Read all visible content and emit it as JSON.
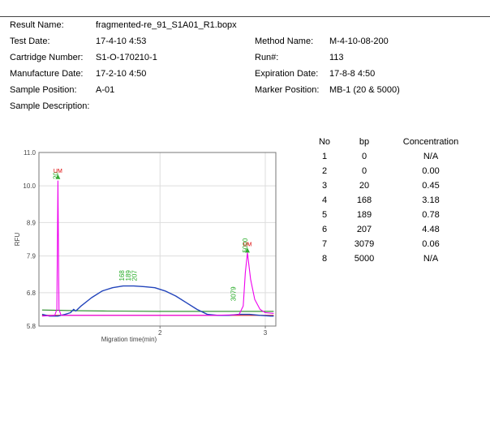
{
  "header": {
    "result_name_label": "Result Name:",
    "result_name": "fragmented-re_91_S1A01_R1.bopx",
    "test_date_label": "Test Date:",
    "test_date": "17-4-10 4:53",
    "method_name_label": "Method Name:",
    "method_name": "M-4-10-08-200",
    "cartridge_label": "Cartridge Number:",
    "cartridge": "S1-O-170210-1",
    "run_label": "Run#:",
    "run": "113",
    "manufacture_label": "Manufacture Date:",
    "manufacture": "17-2-10 4:50",
    "expiration_label": "Expiration Date:",
    "expiration": "17-8-8 4:50",
    "sample_position_label": "Sample Position:",
    "sample_position": "A-01",
    "marker_position_label": "Marker Position:",
    "marker_position": "MB-1 (20 & 5000)",
    "sample_description_label": "Sample Description:"
  },
  "table": {
    "headers": [
      "No",
      "bp",
      "Concentration"
    ],
    "rows": [
      [
        "1",
        "0",
        "N/A"
      ],
      [
        "2",
        "0",
        "0.00"
      ],
      [
        "3",
        "20",
        "0.45"
      ],
      [
        "4",
        "168",
        "3.18"
      ],
      [
        "5",
        "189",
        "0.78"
      ],
      [
        "6",
        "207",
        "4.48"
      ],
      [
        "7",
        "3079",
        "0.06"
      ],
      [
        "8",
        "5000",
        "N/A"
      ]
    ]
  },
  "chart_data": {
    "type": "line",
    "ylabel": "RFU",
    "xlabel": "Migration time(min)",
    "yticks": [
      "11.0",
      "10.0",
      "8.9",
      "7.9",
      "6.8",
      "5.8"
    ],
    "ytick_values": [
      11.0,
      10.0,
      8.9,
      7.9,
      6.8,
      5.8
    ],
    "xticks": [
      "2",
      "3"
    ],
    "xtick_values": [
      2,
      3
    ],
    "xlim": [
      0.85,
      3.1
    ],
    "ylim": [
      5.8,
      11.0
    ],
    "grid": true,
    "colors": {
      "sample": "#2244bb",
      "marker": "#ee00ee",
      "baseline_green": "#228822",
      "baseline_red": "#dd2222",
      "peak_label": "#22aa22",
      "um_label": "#dd0000"
    },
    "peak_labels": [
      {
        "text": "20",
        "x": 1.03,
        "y": 10.15
      },
      {
        "text": "168",
        "x": 1.66,
        "y": 7.1
      },
      {
        "text": "189",
        "x": 1.72,
        "y": 7.1
      },
      {
        "text": "207",
        "x": 1.78,
        "y": 7.1
      },
      {
        "text": "3079",
        "x": 2.72,
        "y": 6.5
      },
      {
        "text": "5000",
        "x": 2.83,
        "y": 7.95
      }
    ],
    "um_markers": [
      {
        "text": "UM",
        "x": 1.03,
        "y": 10.3
      },
      {
        "text": "UM",
        "x": 2.83,
        "y": 8.1
      }
    ],
    "series": [
      {
        "color_key": "marker",
        "x": [
          0.88,
          1.0,
          1.02,
          1.03,
          1.04,
          1.06,
          1.2,
          1.5,
          2.0,
          2.5,
          2.75,
          2.79,
          2.81,
          2.83,
          2.86,
          2.9,
          2.95,
          3.0,
          3.08
        ],
        "y": [
          6.1,
          6.12,
          6.3,
          10.15,
          6.3,
          6.12,
          6.12,
          6.12,
          6.12,
          6.12,
          6.14,
          6.4,
          7.4,
          8.0,
          7.2,
          6.6,
          6.3,
          6.2,
          6.18
        ]
      },
      {
        "color_key": "sample",
        "x": [
          0.88,
          0.95,
          1.03,
          1.1,
          1.15,
          1.18,
          1.2,
          1.25,
          1.35,
          1.45,
          1.55,
          1.65,
          1.75,
          1.85,
          1.95,
          2.05,
          2.15,
          2.25,
          2.35,
          2.45,
          2.55,
          2.65,
          2.75,
          2.85,
          2.95,
          3.05,
          3.08
        ],
        "y": [
          6.15,
          6.1,
          6.1,
          6.15,
          6.2,
          6.3,
          6.25,
          6.4,
          6.65,
          6.85,
          6.95,
          7.0,
          7.0,
          6.98,
          6.95,
          6.85,
          6.7,
          6.5,
          6.3,
          6.15,
          6.12,
          6.12,
          6.15,
          6.15,
          6.12,
          6.1,
          6.1
        ]
      },
      {
        "color_key": "baseline_green",
        "x": [
          0.88,
          1.2,
          1.5,
          2.0,
          2.5,
          3.0,
          3.08
        ],
        "y": [
          6.28,
          6.26,
          6.25,
          6.24,
          6.24,
          6.24,
          6.24
        ]
      },
      {
        "color_key": "baseline_red",
        "x": [
          0.88,
          1.5,
          2.0,
          2.5,
          3.08
        ],
        "y": [
          6.12,
          6.12,
          6.12,
          6.12,
          6.12
        ]
      }
    ]
  }
}
